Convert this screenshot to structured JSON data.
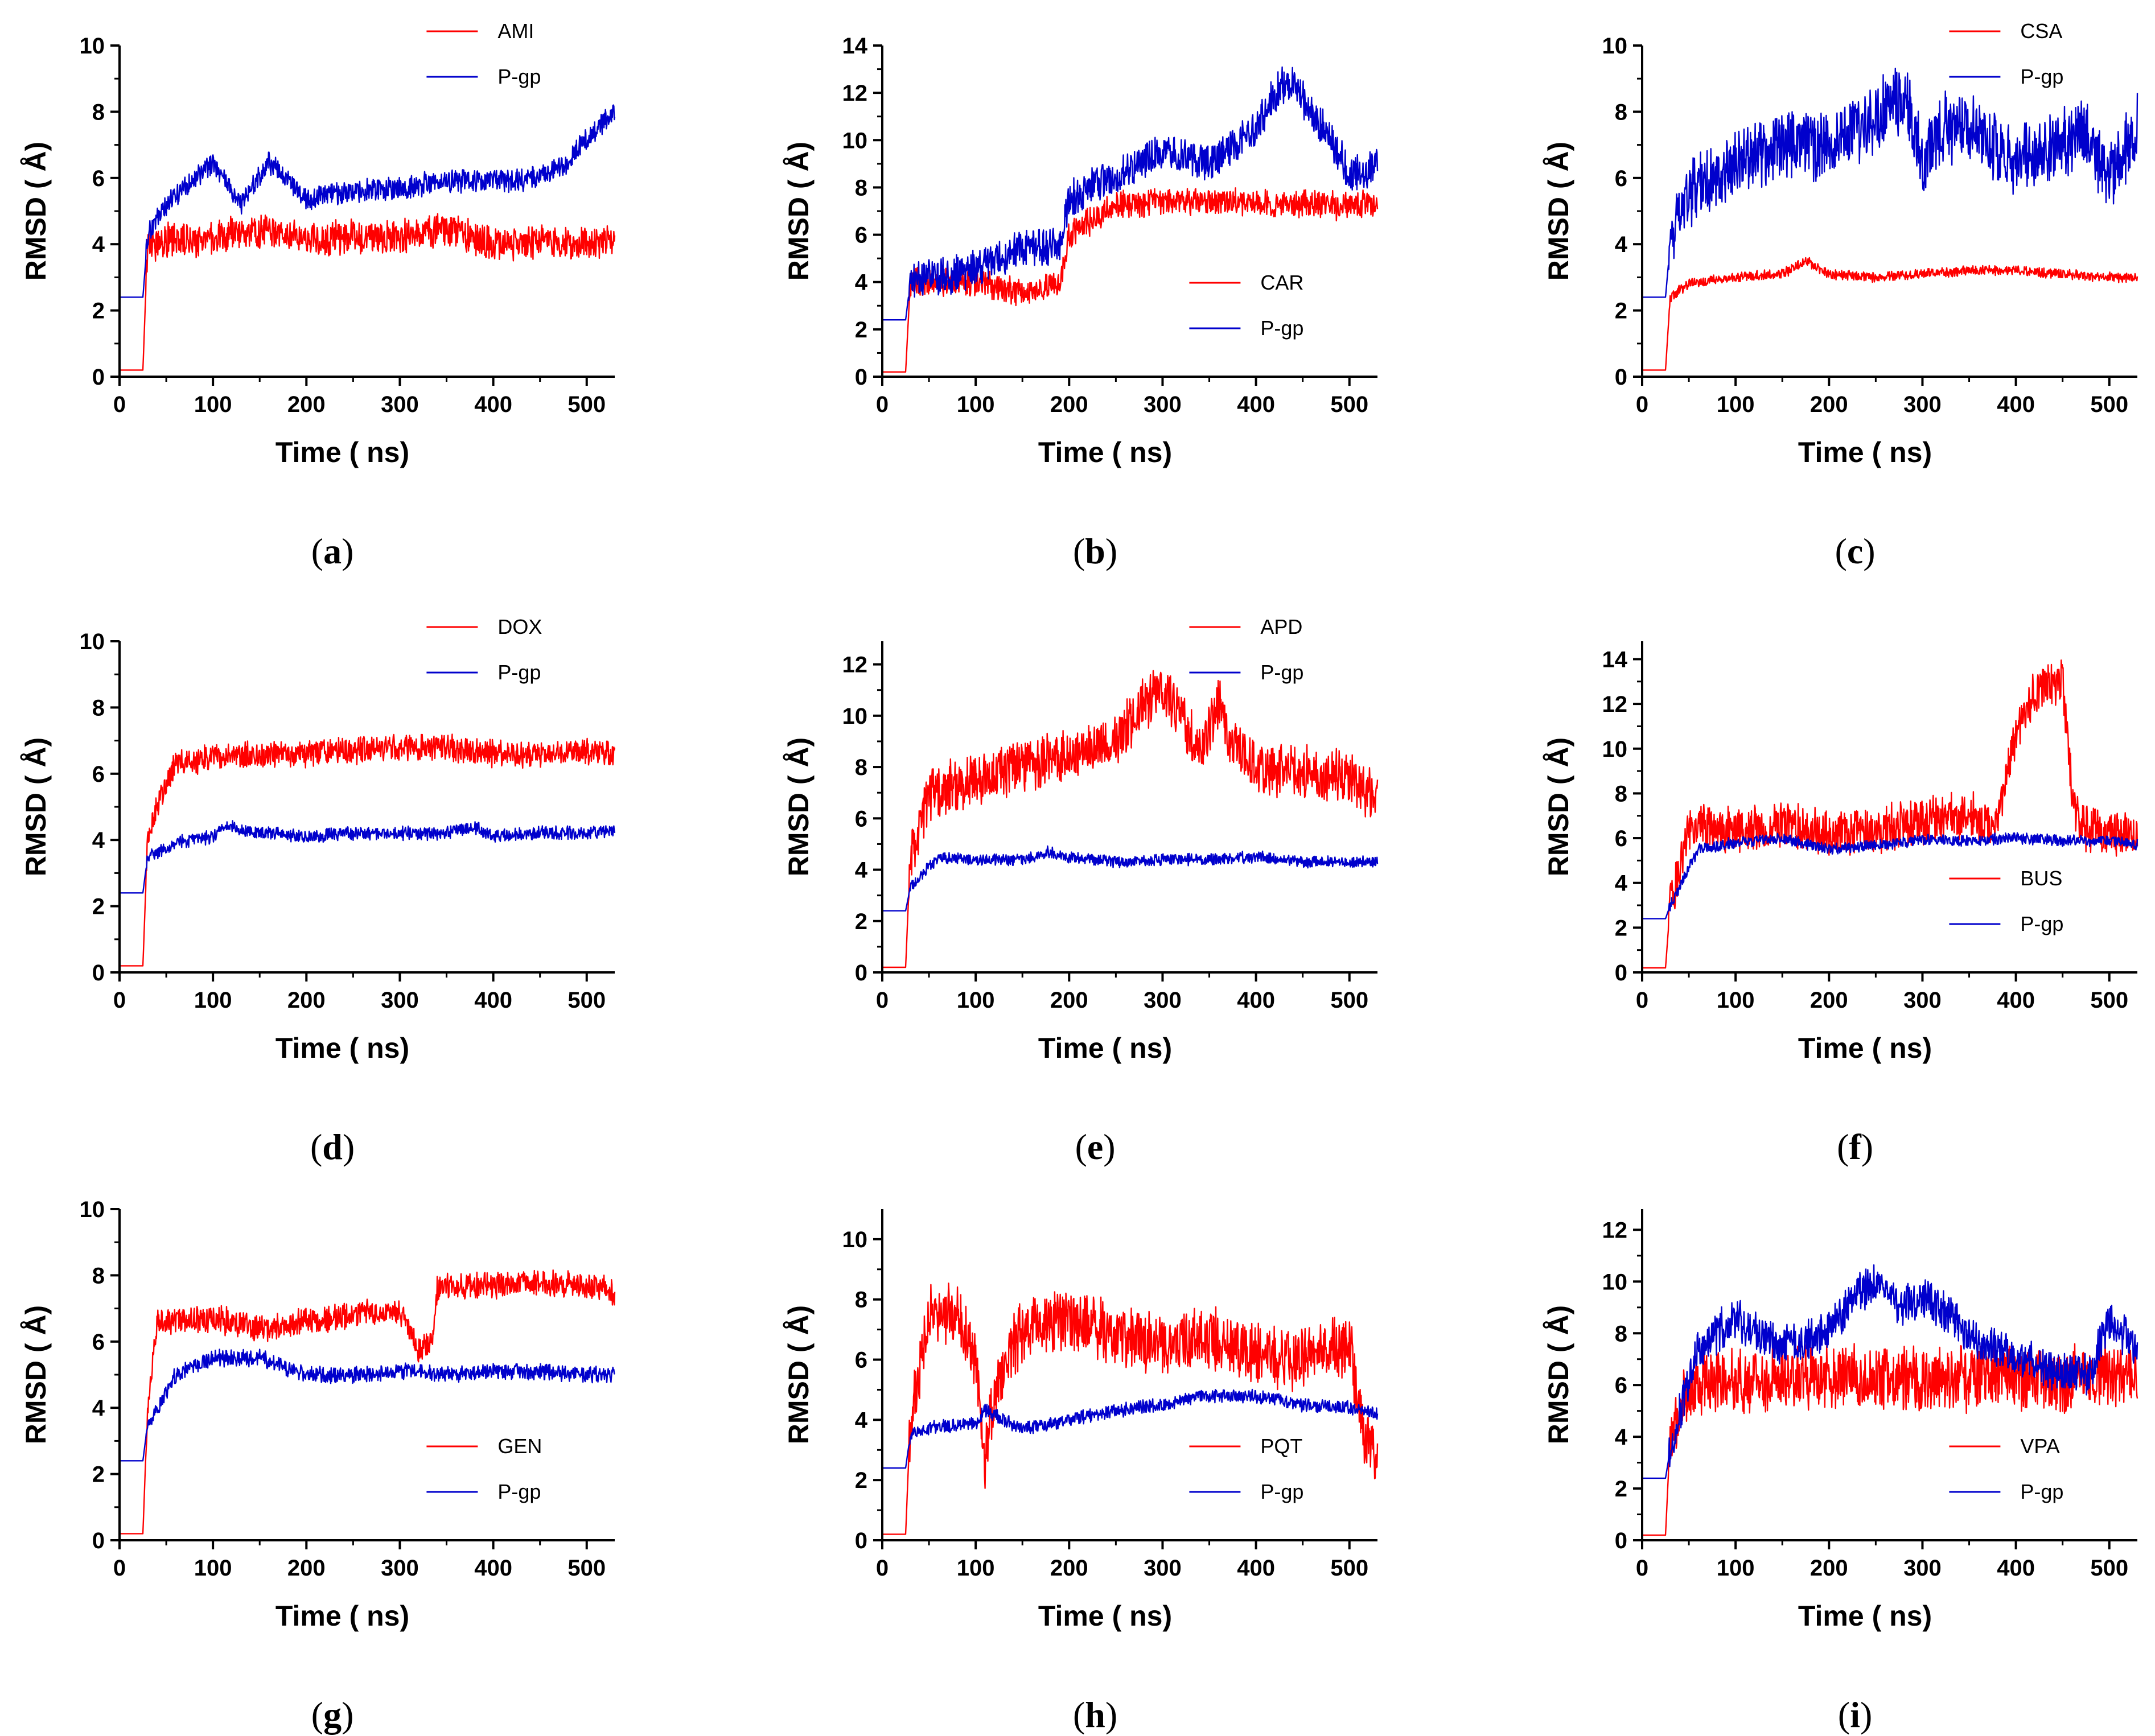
{
  "figure": {
    "panels": [
      "a",
      "b",
      "c",
      "d",
      "e",
      "f",
      "g",
      "h",
      "i"
    ]
  },
  "chart_data": [
    {
      "id": "a",
      "type": "line",
      "panel_label": "a",
      "xlabel": "Time (  ns)",
      "ylabel": "RMSD ( Å)",
      "xlim": [
        0,
        530
      ],
      "ylim": [
        0,
        10
      ],
      "xticks": [
        0,
        100,
        200,
        300,
        400,
        500
      ],
      "yticks": [
        0,
        2,
        4,
        6,
        8,
        10
      ],
      "legend_position": "top-right",
      "series": [
        {
          "name": "AMI",
          "color": "#ff0000",
          "x": [
            0,
            25,
            30,
            50,
            100,
            150,
            200,
            250,
            300,
            350,
            400,
            450,
            500,
            530
          ],
          "y": [
            0.2,
            0.2,
            4.0,
            4.1,
            4.2,
            4.4,
            4.1,
            4.2,
            4.2,
            4.5,
            4.0,
            4.1,
            4.0,
            4.1
          ],
          "noise": 0.45
        },
        {
          "name": "P-gp",
          "color": "#0000cc",
          "x": [
            0,
            25,
            30,
            50,
            100,
            130,
            160,
            200,
            250,
            300,
            350,
            400,
            450,
            480,
            500,
            530
          ],
          "y": [
            2.4,
            2.4,
            4.2,
            5.2,
            6.5,
            5.2,
            6.5,
            5.4,
            5.6,
            5.7,
            5.9,
            5.9,
            6.0,
            6.5,
            7.2,
            8.0
          ],
          "noise": 0.3
        }
      ]
    },
    {
      "id": "b",
      "type": "line",
      "panel_label": "b",
      "xlabel": "Time (  ns)",
      "ylabel": "RMSD ( Å)",
      "xlim": [
        0,
        530
      ],
      "ylim": [
        0,
        14
      ],
      "xticks": [
        0,
        100,
        200,
        300,
        400,
        500
      ],
      "yticks": [
        0,
        2,
        4,
        6,
        8,
        10,
        12,
        14
      ],
      "legend_position": "bottom-right",
      "series": [
        {
          "name": "CAR",
          "color": "#ff0000",
          "x": [
            0,
            25,
            30,
            50,
            100,
            150,
            190,
            200,
            240,
            250,
            300,
            350,
            400,
            450,
            500,
            530
          ],
          "y": [
            0.2,
            0.2,
            4.0,
            4.0,
            4.0,
            3.5,
            4.0,
            6.0,
            7.0,
            7.3,
            7.4,
            7.4,
            7.3,
            7.3,
            7.2,
            7.3
          ],
          "noise": 0.5
        },
        {
          "name": "P-gp",
          "color": "#0000cc",
          "x": [
            0,
            25,
            30,
            50,
            100,
            150,
            190,
            200,
            250,
            300,
            350,
            400,
            420,
            440,
            460,
            480,
            500,
            530
          ],
          "y": [
            2.4,
            2.4,
            4.0,
            4.2,
            4.5,
            5.5,
            5.5,
            7.5,
            8.5,
            9.5,
            9.0,
            10.5,
            12.0,
            12.5,
            11.0,
            10.0,
            8.5,
            9.0
          ],
          "noise": 0.7
        }
      ]
    },
    {
      "id": "c",
      "type": "line",
      "panel_label": "c",
      "xlabel": "Time (  ns)",
      "ylabel": "RMSD ( Å)",
      "xlim": [
        0,
        530
      ],
      "ylim": [
        0,
        10
      ],
      "xticks": [
        0,
        100,
        200,
        300,
        400,
        500
      ],
      "yticks": [
        0,
        2,
        4,
        6,
        8,
        10
      ],
      "legend_position": "top-right",
      "series": [
        {
          "name": "CSA",
          "color": "#ff0000",
          "x": [
            0,
            25,
            30,
            50,
            100,
            150,
            175,
            200,
            250,
            300,
            350,
            400,
            450,
            500,
            530
          ],
          "y": [
            0.2,
            0.2,
            2.4,
            2.8,
            3.0,
            3.1,
            3.5,
            3.1,
            3.0,
            3.1,
            3.2,
            3.2,
            3.1,
            3.0,
            3.0
          ],
          "noise": 0.13
        },
        {
          "name": "P-gp",
          "color": "#0000cc",
          "x": [
            0,
            25,
            30,
            50,
            100,
            150,
            200,
            250,
            280,
            300,
            320,
            350,
            400,
            450,
            470,
            500,
            530
          ],
          "y": [
            2.4,
            2.4,
            4.0,
            5.5,
            6.5,
            7.0,
            7.0,
            7.8,
            8.5,
            6.5,
            7.5,
            7.5,
            6.5,
            7.0,
            7.5,
            6.0,
            7.5
          ],
          "noise": 0.9
        }
      ]
    },
    {
      "id": "d",
      "type": "line",
      "panel_label": "d",
      "xlabel": "Time (  ns)",
      "ylabel": "RMSD ( Å)",
      "xlim": [
        0,
        530
      ],
      "ylim": [
        0,
        10
      ],
      "xticks": [
        0,
        100,
        200,
        300,
        400,
        500
      ],
      "yticks": [
        0,
        2,
        4,
        6,
        8,
        10
      ],
      "legend_position": "top-right",
      "series": [
        {
          "name": "DOX",
          "color": "#ff0000",
          "x": [
            0,
            25,
            30,
            40,
            60,
            100,
            150,
            200,
            250,
            300,
            350,
            400,
            450,
            500,
            530
          ],
          "y": [
            0.2,
            0.2,
            4.0,
            5.0,
            6.3,
            6.5,
            6.6,
            6.6,
            6.7,
            6.8,
            6.8,
            6.6,
            6.6,
            6.7,
            6.6
          ],
          "noise": 0.35
        },
        {
          "name": "P-gp",
          "color": "#0000cc",
          "x": [
            0,
            25,
            30,
            60,
            100,
            115,
            150,
            200,
            250,
            300,
            350,
            380,
            400,
            450,
            500,
            530
          ],
          "y": [
            2.4,
            2.4,
            3.5,
            3.9,
            4.1,
            4.4,
            4.2,
            4.1,
            4.2,
            4.2,
            4.2,
            4.4,
            4.1,
            4.2,
            4.2,
            4.3
          ],
          "noise": 0.18
        }
      ]
    },
    {
      "id": "e",
      "type": "line",
      "panel_label": "e",
      "xlabel": "Time (  ns)",
      "ylabel": "RMSD ( Å)",
      "xlim": [
        0,
        530
      ],
      "ylim": [
        0,
        12.9
      ],
      "xticks": [
        0,
        100,
        200,
        300,
        400,
        500
      ],
      "yticks": [
        0,
        2,
        4,
        6,
        8,
        10,
        12
      ],
      "legend_position": "top-right",
      "series": [
        {
          "name": "APD",
          "color": "#ff0000",
          "x": [
            0,
            25,
            30,
            50,
            100,
            150,
            200,
            250,
            280,
            300,
            320,
            340,
            360,
            370,
            390,
            400,
            450,
            500,
            530
          ],
          "y": [
            0.2,
            0.2,
            4.5,
            7.0,
            7.5,
            8.0,
            8.5,
            9.0,
            10.5,
            11.0,
            10.0,
            8.5,
            10.5,
            9.0,
            8.5,
            8.0,
            7.8,
            7.5,
            6.8
          ],
          "noise": 0.9
        },
        {
          "name": "P-gp",
          "color": "#0000cc",
          "x": [
            0,
            25,
            30,
            60,
            100,
            150,
            180,
            200,
            250,
            300,
            350,
            400,
            450,
            500,
            530
          ],
          "y": [
            2.4,
            2.4,
            3.3,
            4.5,
            4.4,
            4.4,
            4.7,
            4.5,
            4.3,
            4.4,
            4.4,
            4.5,
            4.3,
            4.3,
            4.3
          ],
          "noise": 0.2
        }
      ]
    },
    {
      "id": "f",
      "type": "line",
      "panel_label": "f",
      "xlabel": "Time (  ns)",
      "ylabel": "RMSD ( Å)",
      "xlim": [
        0,
        530
      ],
      "ylim": [
        0,
        14.8
      ],
      "xticks": [
        0,
        100,
        200,
        300,
        400,
        500
      ],
      "yticks": [
        0,
        2,
        4,
        6,
        8,
        10,
        12,
        14
      ],
      "legend_position": "bottom-right",
      "series": [
        {
          "name": "BUS",
          "color": "#ff0000",
          "x": [
            0,
            25,
            30,
            50,
            100,
            150,
            200,
            250,
            300,
            350,
            380,
            395,
            420,
            450,
            460,
            470,
            500,
            530
          ],
          "y": [
            0.2,
            0.2,
            3.0,
            6.5,
            6.3,
            6.6,
            6.2,
            6.3,
            6.8,
            7.0,
            6.5,
            10.0,
            12.5,
            13.0,
            8.0,
            6.5,
            6.3,
            6.2
          ],
          "noise": 0.9
        },
        {
          "name": "P-gp",
          "color": "#0000cc",
          "x": [
            0,
            25,
            30,
            60,
            100,
            150,
            200,
            250,
            300,
            350,
            400,
            450,
            500,
            530
          ],
          "y": [
            2.4,
            2.4,
            3.0,
            5.5,
            5.8,
            6.0,
            5.5,
            5.7,
            5.9,
            5.9,
            6.0,
            5.9,
            5.9,
            5.7
          ],
          "noise": 0.22
        }
      ]
    },
    {
      "id": "g",
      "type": "line",
      "panel_label": "g",
      "xlabel": "Time (  ns)",
      "ylabel": "RMSD ( Å)",
      "xlim": [
        0,
        530
      ],
      "ylim": [
        0,
        10
      ],
      "xticks": [
        0,
        100,
        200,
        300,
        400,
        500
      ],
      "yticks": [
        0,
        2,
        4,
        6,
        8,
        10
      ],
      "legend_position": "bottom-right",
      "series": [
        {
          "name": "GEN",
          "color": "#ff0000",
          "x": [
            0,
            25,
            30,
            40,
            100,
            150,
            200,
            250,
            300,
            320,
            335,
            340,
            400,
            450,
            500,
            530
          ],
          "y": [
            0.2,
            0.2,
            4.0,
            6.6,
            6.7,
            6.4,
            6.6,
            6.8,
            6.9,
            5.8,
            6.0,
            7.6,
            7.7,
            7.8,
            7.7,
            7.5
          ],
          "noise": 0.35
        },
        {
          "name": "P-gp",
          "color": "#0000cc",
          "x": [
            0,
            25,
            30,
            60,
            100,
            150,
            200,
            250,
            300,
            350,
            400,
            450,
            500,
            530
          ],
          "y": [
            2.4,
            2.4,
            3.5,
            5.0,
            5.5,
            5.5,
            5.0,
            5.0,
            5.1,
            5.0,
            5.1,
            5.1,
            5.0,
            5.0
          ],
          "noise": 0.22
        }
      ]
    },
    {
      "id": "h",
      "type": "line",
      "panel_label": "h",
      "xlabel": "Time (  ns)",
      "ylabel": "RMSD ( Å)",
      "xlim": [
        0,
        530
      ],
      "ylim": [
        0,
        11
      ],
      "xticks": [
        0,
        100,
        200,
        300,
        400,
        500
      ],
      "yticks": [
        0,
        2,
        4,
        6,
        8,
        10
      ],
      "legend_position": "bottom-right",
      "series": [
        {
          "name": "PQT",
          "color": "#ff0000",
          "x": [
            0,
            25,
            30,
            50,
            80,
            100,
            110,
            120,
            150,
            200,
            250,
            300,
            350,
            400,
            450,
            500,
            515,
            530
          ],
          "y": [
            0.2,
            0.2,
            4.0,
            7.5,
            7.5,
            6.0,
            2.5,
            5.0,
            7.0,
            7.3,
            6.8,
            6.5,
            6.8,
            6.2,
            6.0,
            6.5,
            3.5,
            2.5
          ],
          "noise": 0.9
        },
        {
          "name": "P-gp",
          "color": "#0000cc",
          "x": [
            0,
            25,
            30,
            60,
            100,
            110,
            150,
            200,
            250,
            300,
            350,
            400,
            450,
            500,
            530
          ],
          "y": [
            2.4,
            2.4,
            3.5,
            3.8,
            3.9,
            4.3,
            3.7,
            4.0,
            4.3,
            4.5,
            4.8,
            4.8,
            4.5,
            4.4,
            4.2
          ],
          "noise": 0.2
        }
      ]
    },
    {
      "id": "i",
      "type": "line",
      "panel_label": "i",
      "xlabel": "Time (  ns)",
      "ylabel": "RMSD ( Å)",
      "xlim": [
        0,
        530
      ],
      "ylim": [
        0,
        12.8
      ],
      "xticks": [
        0,
        100,
        200,
        300,
        400,
        500
      ],
      "yticks": [
        0,
        2,
        4,
        6,
        8,
        10,
        12
      ],
      "legend_position": "bottom-right",
      "series": [
        {
          "name": "VPA",
          "color": "#ff0000",
          "x": [
            0,
            25,
            30,
            50,
            100,
            150,
            200,
            250,
            300,
            350,
            400,
            450,
            500,
            530
          ],
          "y": [
            0.2,
            0.2,
            4.0,
            6.0,
            6.2,
            6.3,
            6.3,
            6.4,
            6.2,
            6.3,
            6.3,
            6.2,
            6.5,
            6.4
          ],
          "noise": 1.1
        },
        {
          "name": "P-gp",
          "color": "#0000cc",
          "x": [
            0,
            25,
            30,
            60,
            100,
            150,
            200,
            230,
            250,
            280,
            300,
            350,
            400,
            450,
            480,
            500,
            530
          ],
          "y": [
            2.4,
            2.4,
            3.5,
            7.5,
            8.5,
            7.5,
            8.0,
            9.5,
            10.0,
            9.0,
            9.5,
            8.0,
            7.0,
            6.5,
            6.5,
            8.5,
            7.5
          ],
          "noise": 0.7
        }
      ]
    }
  ]
}
